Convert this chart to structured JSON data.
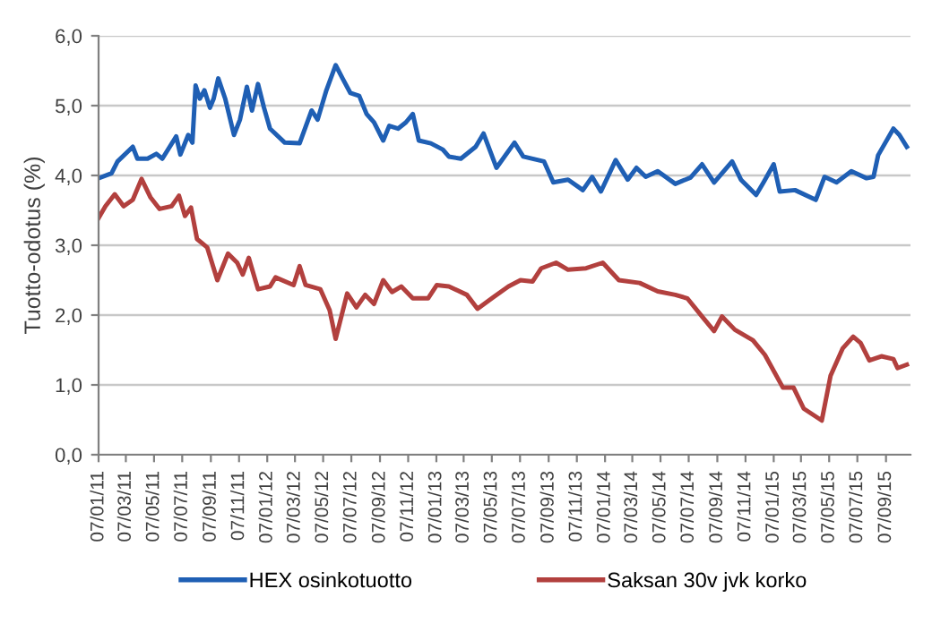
{
  "chart_data": {
    "type": "line",
    "ylabel": "Tuotto-odotus (%)",
    "xlim": [
      "2011-01-07",
      "2015-10-30"
    ],
    "ylim": [
      0,
      6
    ],
    "yticks": [
      {
        "value": 0,
        "label": "0,0"
      },
      {
        "value": 1,
        "label": "1,0"
      },
      {
        "value": 2,
        "label": "2,0"
      },
      {
        "value": 3,
        "label": "3,0"
      },
      {
        "value": 4,
        "label": "4,0"
      },
      {
        "value": 5,
        "label": "5,0"
      },
      {
        "value": 6,
        "label": "6,0"
      }
    ],
    "xticks": [
      {
        "value": "2011-01-07",
        "label": "07/01/11"
      },
      {
        "value": "2011-03-07",
        "label": "07/03/11"
      },
      {
        "value": "2011-05-07",
        "label": "07/05/11"
      },
      {
        "value": "2011-07-07",
        "label": "07/07/11"
      },
      {
        "value": "2011-09-07",
        "label": "07/09/11"
      },
      {
        "value": "2011-11-07",
        "label": "07/11/11"
      },
      {
        "value": "2012-01-07",
        "label": "07/01/12"
      },
      {
        "value": "2012-03-07",
        "label": "07/03/12"
      },
      {
        "value": "2012-05-07",
        "label": "07/05/12"
      },
      {
        "value": "2012-07-07",
        "label": "07/07/12"
      },
      {
        "value": "2012-09-07",
        "label": "07/09/12"
      },
      {
        "value": "2012-11-07",
        "label": "07/11/12"
      },
      {
        "value": "2013-01-07",
        "label": "07/01/13"
      },
      {
        "value": "2013-03-07",
        "label": "07/03/13"
      },
      {
        "value": "2013-05-07",
        "label": "07/05/13"
      },
      {
        "value": "2013-07-07",
        "label": "07/07/13"
      },
      {
        "value": "2013-09-07",
        "label": "07/09/13"
      },
      {
        "value": "2013-11-07",
        "label": "07/11/13"
      },
      {
        "value": "2014-01-07",
        "label": "07/01/14"
      },
      {
        "value": "2014-03-07",
        "label": "07/03/14"
      },
      {
        "value": "2014-05-07",
        "label": "07/05/14"
      },
      {
        "value": "2014-07-07",
        "label": "07/07/14"
      },
      {
        "value": "2014-09-07",
        "label": "07/09/14"
      },
      {
        "value": "2014-11-07",
        "label": "07/11/14"
      },
      {
        "value": "2015-01-07",
        "label": "07/01/15"
      },
      {
        "value": "2015-03-07",
        "label": "07/03/15"
      },
      {
        "value": "2015-05-07",
        "label": "07/05/15"
      },
      {
        "value": "2015-07-07",
        "label": "07/07/15"
      },
      {
        "value": "2015-09-07",
        "label": "07/09/15"
      }
    ],
    "grid": "y",
    "legend": "bottom",
    "marker": "none",
    "line_style": "solid",
    "series": [
      {
        "name": "HEX osinkotuotto",
        "color": "#1f5fb4",
        "x": [
          "2011-01-07",
          "2011-02-04",
          "2011-02-17",
          "2011-03-22",
          "2011-04-01",
          "2011-04-23",
          "2011-05-12",
          "2011-05-25",
          "2011-06-24",
          "2011-07-03",
          "2011-07-20",
          "2011-07-29",
          "2011-08-05",
          "2011-08-14",
          "2011-08-24",
          "2011-09-05",
          "2011-09-13",
          "2011-09-23",
          "2011-10-08",
          "2011-10-27",
          "2011-11-09",
          "2011-11-24",
          "2011-12-05",
          "2011-12-18",
          "2011-12-31",
          "2012-01-13",
          "2012-02-14",
          "2012-03-17",
          "2012-04-12",
          "2012-04-25",
          "2012-05-14",
          "2012-06-03",
          "2012-06-18",
          "2012-07-05",
          "2012-07-24",
          "2012-08-09",
          "2012-08-25",
          "2012-09-14",
          "2012-09-27",
          "2012-10-16",
          "2012-11-02",
          "2012-11-17",
          "2012-11-30",
          "2012-12-26",
          "2013-01-21",
          "2013-02-03",
          "2013-03-01",
          "2013-04-02",
          "2013-04-19",
          "2013-05-17",
          "2013-06-25",
          "2013-07-14",
          "2013-08-28",
          "2013-09-17",
          "2013-10-19",
          "2013-11-20",
          "2013-12-10",
          "2013-12-29",
          "2014-01-30",
          "2014-02-25",
          "2014-03-16",
          "2014-04-05",
          "2014-05-01",
          "2014-06-08",
          "2014-07-11",
          "2014-08-05",
          "2014-08-31",
          "2014-10-09",
          "2014-10-28",
          "2014-11-30",
          "2014-12-16",
          "2015-01-07",
          "2015-01-20",
          "2015-02-22",
          "2015-04-08",
          "2015-04-27",
          "2015-05-23",
          "2015-06-24",
          "2015-07-27",
          "2015-08-11",
          "2015-08-21",
          "2015-09-23",
          "2015-10-06",
          "2015-10-22"
        ],
        "values": [
          3.96,
          4.03,
          4.2,
          4.41,
          4.24,
          4.24,
          4.31,
          4.24,
          4.56,
          4.3,
          4.58,
          4.47,
          5.29,
          5.1,
          5.22,
          4.97,
          5.1,
          5.39,
          5.1,
          4.58,
          4.8,
          5.27,
          4.93,
          5.31,
          4.97,
          4.67,
          4.47,
          4.46,
          4.93,
          4.8,
          5.22,
          5.58,
          5.39,
          5.18,
          5.14,
          4.88,
          4.76,
          4.5,
          4.71,
          4.67,
          4.76,
          4.88,
          4.5,
          4.46,
          4.37,
          4.27,
          4.24,
          4.41,
          4.6,
          4.11,
          4.47,
          4.27,
          4.2,
          3.9,
          3.94,
          3.79,
          3.98,
          3.77,
          4.22,
          3.94,
          4.11,
          3.98,
          4.06,
          3.88,
          3.97,
          4.16,
          3.9,
          4.2,
          3.94,
          3.72,
          3.9,
          4.16,
          3.77,
          3.79,
          3.65,
          3.98,
          3.9,
          4.06,
          3.96,
          3.98,
          4.29,
          4.67,
          4.58,
          4.41
        ]
      },
      {
        "name": "Saksan 30v jvk korko",
        "color": "#b2403e",
        "x": [
          "2011-01-07",
          "2011-01-22",
          "2011-02-11",
          "2011-03-02",
          "2011-03-22",
          "2011-04-10",
          "2011-04-29",
          "2011-05-19",
          "2011-06-14",
          "2011-06-30",
          "2011-07-13",
          "2011-07-26",
          "2011-08-08",
          "2011-08-30",
          "2011-09-21",
          "2011-10-14",
          "2011-11-03",
          "2011-11-15",
          "2011-11-28",
          "2011-12-18",
          "2012-01-13",
          "2012-01-25",
          "2012-03-04",
          "2012-03-17",
          "2012-03-30",
          "2012-05-01",
          "2012-05-21",
          "2012-06-03",
          "2012-06-28",
          "2012-07-18",
          "2012-08-06",
          "2012-08-25",
          "2012-09-14",
          "2012-10-03",
          "2012-10-23",
          "2012-11-17",
          "2012-12-20",
          "2013-01-08",
          "2013-02-03",
          "2013-03-14",
          "2013-04-06",
          "2013-05-11",
          "2013-06-12",
          "2013-07-08",
          "2013-08-03",
          "2013-08-22",
          "2013-09-23",
          "2013-10-19",
          "2013-11-27",
          "2014-01-02",
          "2014-02-06",
          "2014-03-23",
          "2014-05-01",
          "2014-06-08",
          "2014-07-04",
          "2014-08-05",
          "2014-08-31",
          "2014-09-17",
          "2014-10-15",
          "2014-11-23",
          "2014-12-19",
          "2015-01-27",
          "2015-02-19",
          "2015-03-13",
          "2015-04-21",
          "2015-05-10",
          "2015-06-05",
          "2015-06-28",
          "2015-07-14",
          "2015-08-02",
          "2015-08-28",
          "2015-09-23",
          "2015-10-02",
          "2015-10-22"
        ],
        "values": [
          3.39,
          3.56,
          3.73,
          3.56,
          3.65,
          3.95,
          3.69,
          3.52,
          3.56,
          3.71,
          3.42,
          3.54,
          3.09,
          2.97,
          2.5,
          2.88,
          2.75,
          2.58,
          2.82,
          2.37,
          2.41,
          2.54,
          2.43,
          2.7,
          2.43,
          2.37,
          2.07,
          1.66,
          2.31,
          2.11,
          2.29,
          2.16,
          2.5,
          2.33,
          2.41,
          2.24,
          2.24,
          2.43,
          2.41,
          2.29,
          2.09,
          2.26,
          2.41,
          2.5,
          2.48,
          2.67,
          2.75,
          2.65,
          2.67,
          2.75,
          2.5,
          2.46,
          2.34,
          2.29,
          2.24,
          1.98,
          1.77,
          1.98,
          1.79,
          1.64,
          1.43,
          0.96,
          0.96,
          0.66,
          0.49,
          1.13,
          1.52,
          1.69,
          1.6,
          1.35,
          1.41,
          1.37,
          1.24,
          1.29
        ]
      }
    ]
  }
}
